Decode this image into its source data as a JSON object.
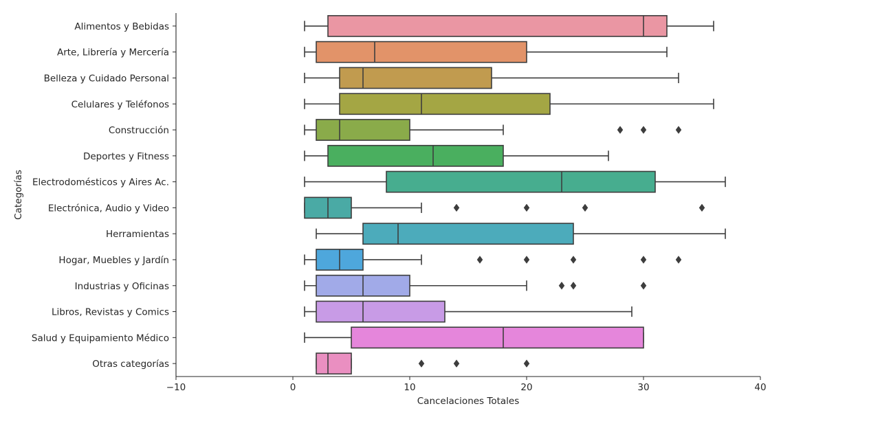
{
  "chart_data": {
    "type": "boxplot",
    "orientation": "horizontal",
    "xlabel": "Cancelaciones Totales",
    "ylabel": "Categorías",
    "xlim": [
      -10,
      40
    ],
    "xticks": [
      -10,
      0,
      10,
      20,
      30,
      40
    ],
    "xtick_labels": [
      "−10",
      "0",
      "10",
      "20",
      "30",
      "40"
    ],
    "grid": false,
    "categories": [
      {
        "name": "Alimentos y Bebidas",
        "color": "#ea96a3",
        "whisker_low": 1,
        "q1": 3,
        "median": 30,
        "q3": 32,
        "whisker_high": 36,
        "outliers": []
      },
      {
        "name": "Arte, Librería y Mercería",
        "color": "#e29369",
        "whisker_low": 1,
        "q1": 2,
        "median": 7,
        "q3": 20,
        "whisker_high": 32,
        "outliers": []
      },
      {
        "name": "Belleza y Cuidado Personal",
        "color": "#c19b4f",
        "whisker_low": 1,
        "q1": 4,
        "median": 6,
        "q3": 17,
        "whisker_high": 33,
        "outliers": []
      },
      {
        "name": "Celulares y Teléfonos",
        "color": "#a4a644",
        "whisker_low": 1,
        "q1": 4,
        "median": 11,
        "q3": 22,
        "whisker_high": 36,
        "outliers": []
      },
      {
        "name": "Construcción",
        "color": "#8aab4a",
        "whisker_low": 1,
        "q1": 2,
        "median": 4,
        "q3": 10,
        "whisker_high": 18,
        "outliers": [
          28,
          30,
          33
        ]
      },
      {
        "name": "Deportes y Fitness",
        "color": "#4aaf5f",
        "whisker_low": 1,
        "q1": 3,
        "median": 12,
        "q3": 18,
        "whisker_high": 27,
        "outliers": []
      },
      {
        "name": "Electrodomésticos y Aires Ac.",
        "color": "#47ad8f",
        "whisker_low": 1,
        "q1": 8,
        "median": 23,
        "q3": 31,
        "whisker_high": 37,
        "outliers": []
      },
      {
        "name": "Electrónica, Audio y Video",
        "color": "#4aaaa5",
        "whisker_low": 1,
        "q1": 1,
        "median": 3,
        "q3": 5,
        "whisker_high": 11,
        "outliers": [
          14,
          20,
          25,
          35
        ]
      },
      {
        "name": "Herramientas",
        "color": "#4cabbb",
        "whisker_low": 2,
        "q1": 6,
        "median": 9,
        "q3": 24,
        "whisker_high": 37,
        "outliers": []
      },
      {
        "name": "Hogar, Muebles y Jardín",
        "color": "#4ea7dc",
        "whisker_low": 1,
        "q1": 2,
        "median": 4,
        "q3": 6,
        "whisker_high": 11,
        "outliers": [
          16,
          20,
          24,
          30,
          33
        ]
      },
      {
        "name": "Industrias y Oficinas",
        "color": "#a1aae8",
        "whisker_low": 1,
        "q1": 2,
        "median": 6,
        "q3": 10,
        "whisker_high": 20,
        "outliers": [
          23,
          24,
          30
        ]
      },
      {
        "name": "Libros, Revistas y Comics",
        "color": "#c89be6",
        "whisker_low": 1,
        "q1": 2,
        "median": 6,
        "q3": 13,
        "whisker_high": 29,
        "outliers": []
      },
      {
        "name": "Salud y Equipamiento Médico",
        "color": "#e586db",
        "whisker_low": 1,
        "q1": 5,
        "median": 18,
        "q3": 30,
        "whisker_high": 30,
        "outliers": []
      },
      {
        "name": "Otras categorías",
        "color": "#ea8fc1",
        "whisker_low": 2,
        "q1": 2,
        "median": 3,
        "q3": 5,
        "whisker_high": 5,
        "outliers": [
          11,
          14,
          20
        ]
      }
    ]
  }
}
